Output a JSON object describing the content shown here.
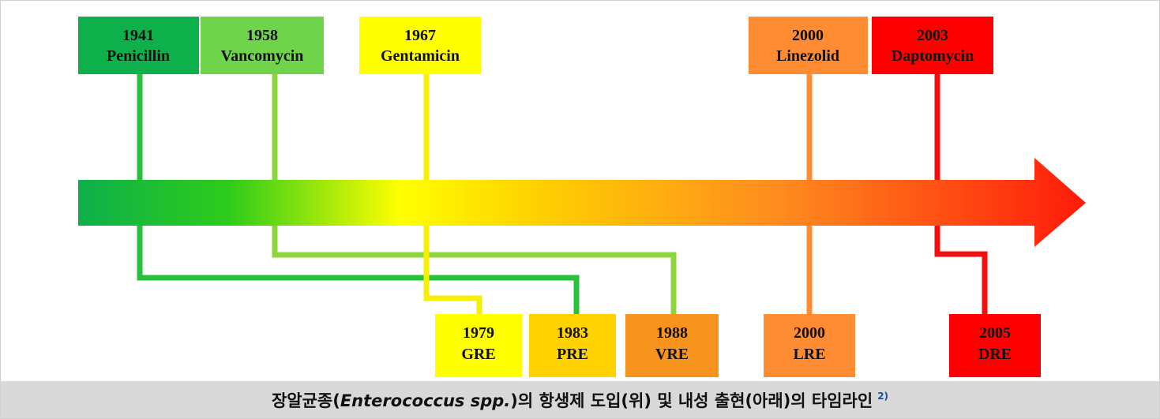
{
  "top_boxes": [
    {
      "year": "1941",
      "name": "Penicillin"
    },
    {
      "year": "1958",
      "name": "Vancomycin"
    },
    {
      "year": "1967",
      "name": "Gentamicin"
    },
    {
      "year": "2000",
      "name": "Linezolid"
    },
    {
      "year": "2003",
      "name": "Daptomycin"
    }
  ],
  "bottom_boxes": [
    {
      "year": "1979",
      "name": "GRE"
    },
    {
      "year": "1983",
      "name": "PRE"
    },
    {
      "year": "1988",
      "name": "VRE"
    },
    {
      "year": "2000",
      "name": "LRE"
    },
    {
      "year": "2005",
      "name": "DRE"
    }
  ],
  "caption": {
    "prefix": "장알균종(",
    "italic": "Enterococcus spp.",
    "suffix": ")의 항생제 도입(위) 및 내성 출현(아래)의 타임라인",
    "ref": "2)"
  }
}
